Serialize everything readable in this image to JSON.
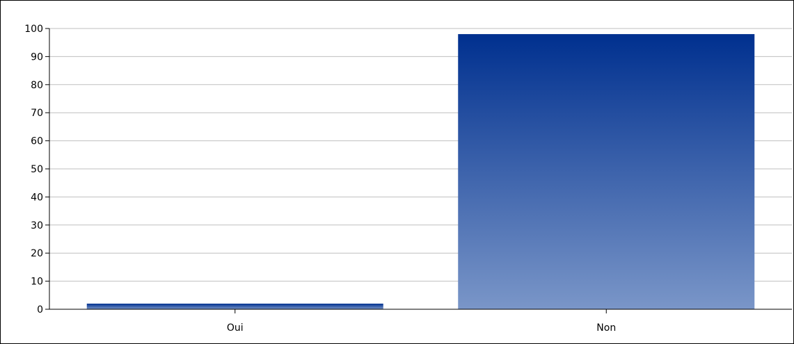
{
  "chart_data": {
    "type": "bar",
    "categories": [
      "Oui",
      "Non"
    ],
    "values": [
      2,
      98
    ],
    "title": "",
    "xlabel": "",
    "ylabel": "",
    "ylim": [
      0,
      100
    ],
    "yticks": [
      "0",
      "10",
      "20",
      "30",
      "40",
      "50",
      "60",
      "70",
      "80",
      "90",
      "100"
    ],
    "grid": true,
    "legend": "none",
    "colors": {
      "bar_top": "#00308f",
      "bar_bottom": "#7a96c8",
      "grid": "#bfbfbf",
      "axis": "#000000"
    }
  }
}
